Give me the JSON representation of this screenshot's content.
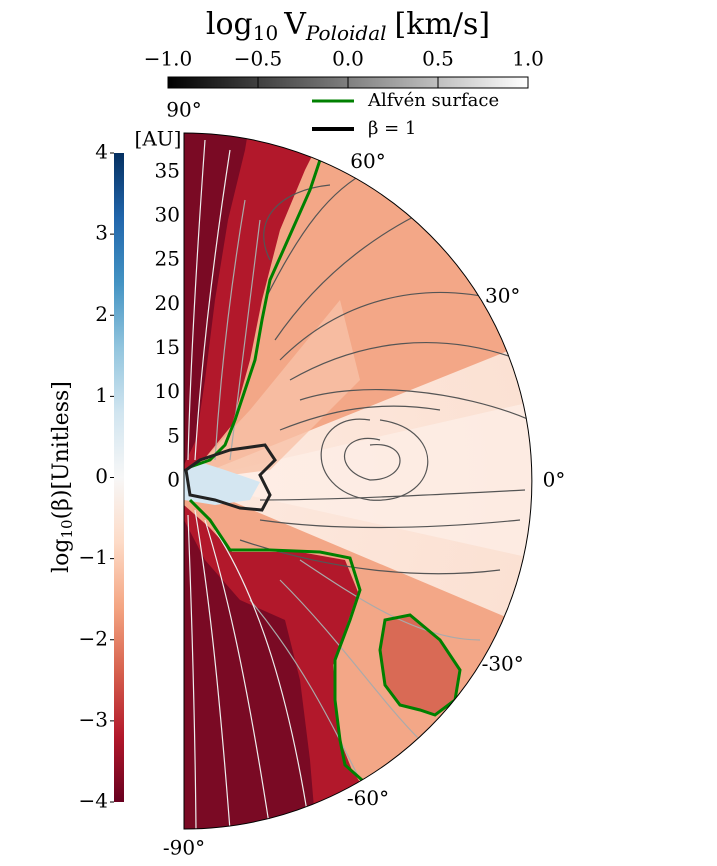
{
  "chart_data": {
    "type": "polar-contour",
    "colorbar_top": {
      "title_prefix": "log",
      "title_sub1": "10",
      "title_var": "V",
      "title_sub2": "Poloidal",
      "title_unit": "[km/s]",
      "lim": [
        -1,
        1
      ],
      "ticks": [
        {
          "value": -1,
          "label": "−1.0"
        },
        {
          "value": -0.5,
          "label": "−0.5"
        },
        {
          "value": 0,
          "label": "0.0"
        },
        {
          "value": 0.5,
          "label": "0.5"
        },
        {
          "value": 1,
          "label": "1.0"
        }
      ],
      "colors": [
        "#000000",
        "#ffffff"
      ]
    },
    "colorbar_left": {
      "label_prefix": "log",
      "label_sub": "10",
      "label_rest": "(β)[Unitless]",
      "lim": [
        -4,
        4
      ],
      "ticks": [
        {
          "value": -4,
          "label": "−4"
        },
        {
          "value": -3,
          "label": "−3"
        },
        {
          "value": -2,
          "label": "−2"
        },
        {
          "value": -1,
          "label": "−1"
        },
        0,
        1,
        2,
        3,
        4
      ],
      "colors": [
        "#67001f",
        "#b2182b",
        "#d6604d",
        "#f4a582",
        "#fddbc7",
        "#f7f7f7",
        "#d1e5f0",
        "#92c5de",
        "#4393c3",
        "#2166ac",
        "#053061"
      ]
    },
    "radial_axis": {
      "label": "[AU]",
      "rlim": [
        0,
        39.4
      ],
      "rticks": [
        0,
        5,
        10,
        15,
        20,
        25,
        30,
        35
      ]
    },
    "angle_ticks": [
      {
        "value": 90,
        "label": "90°"
      },
      {
        "value": 60,
        "label": "60°"
      },
      {
        "value": 30,
        "label": "30°"
      },
      {
        "value": 0,
        "label": "0°"
      },
      {
        "value": -30,
        "label": "-30°"
      },
      {
        "value": -60,
        "label": "-60°"
      },
      {
        "value": -90,
        "label": "-90°"
      }
    ],
    "legend": [
      {
        "name": "Alfvén surface",
        "color": "#008000"
      },
      {
        "name": "β = 1",
        "color": "#000000"
      }
    ]
  }
}
